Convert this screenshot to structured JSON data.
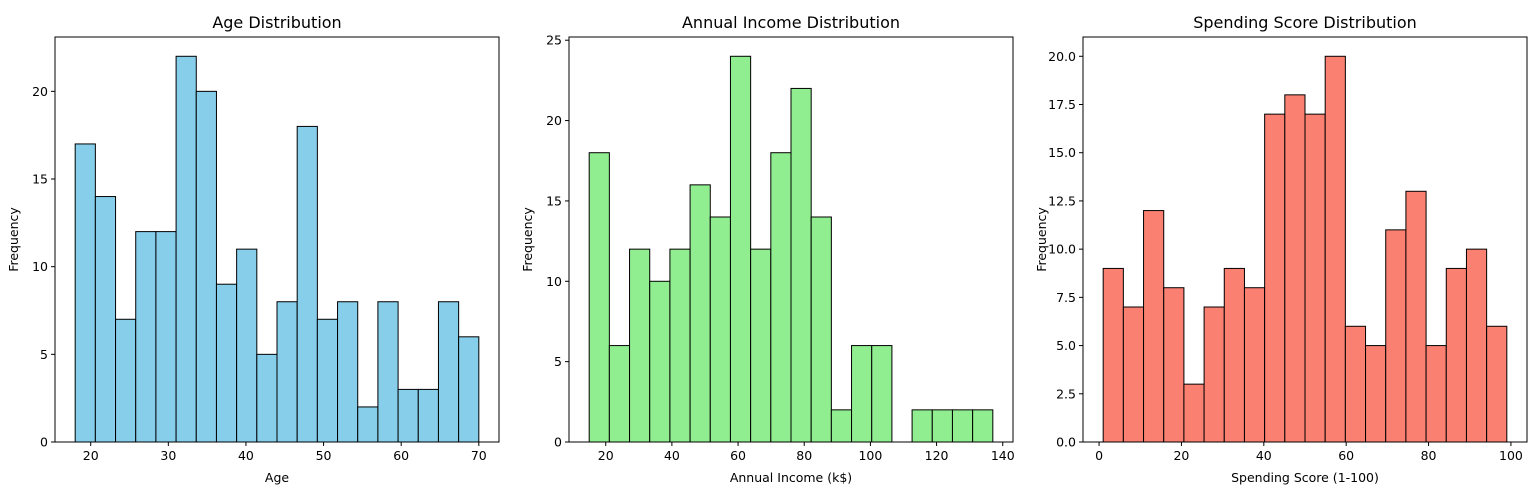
{
  "chart_data": [
    {
      "type": "bar",
      "title": "Age Distribution",
      "xlabel": "Age",
      "ylabel": "Frequency",
      "color": "#87ceeb",
      "edge_color": "#000000",
      "bin_start": 18,
      "bin_width": 2.6,
      "values": [
        17,
        14,
        7,
        12,
        12,
        22,
        20,
        9,
        11,
        5,
        8,
        18,
        7,
        8,
        2,
        8,
        3,
        3,
        8,
        6
      ],
      "xlim": [
        15.4,
        72.6
      ],
      "ylim": [
        0,
        23.1
      ],
      "xticks": [
        20,
        30,
        40,
        50,
        60,
        70
      ],
      "yticks": [
        0,
        5,
        10,
        15,
        20
      ],
      "ytick_labels": [
        "0",
        "5",
        "10",
        "15",
        "20"
      ]
    },
    {
      "type": "bar",
      "title": "Annual Income Distribution",
      "xlabel": "Annual Income (k$)",
      "ylabel": "Frequency",
      "color": "#90ee90",
      "edge_color": "#000000",
      "bin_start": 15,
      "bin_width": 6.1,
      "values": [
        18,
        6,
        12,
        10,
        12,
        16,
        14,
        24,
        12,
        18,
        22,
        14,
        2,
        6,
        6,
        0,
        2,
        2,
        2,
        2
      ],
      "xlim": [
        8.9,
        143.1
      ],
      "ylim": [
        0,
        25.2
      ],
      "xticks": [
        20,
        40,
        60,
        80,
        100,
        120,
        140
      ],
      "yticks": [
        0,
        5,
        10,
        15,
        20,
        25
      ],
      "ytick_labels": [
        "0",
        "5",
        "10",
        "15",
        "20",
        "25"
      ]
    },
    {
      "type": "bar",
      "title": "Spending Score Distribution",
      "xlabel": "Spending Score (1-100)",
      "ylabel": "Frequency",
      "color": "#fa8072",
      "edge_color": "#000000",
      "bin_start": 1,
      "bin_width": 4.9,
      "values": [
        9,
        7,
        12,
        8,
        3,
        7,
        9,
        8,
        17,
        18,
        17,
        20,
        6,
        5,
        11,
        13,
        5,
        9,
        10,
        6
      ],
      "xlim": [
        -3.9,
        103.9
      ],
      "ylim": [
        0,
        21
      ],
      "xticks": [
        0,
        20,
        40,
        60,
        80,
        100
      ],
      "yticks": [
        0,
        2.5,
        5,
        7.5,
        10,
        12.5,
        15,
        17.5,
        20
      ],
      "ytick_labels": [
        "0.0",
        "2.5",
        "5.0",
        "7.5",
        "10.0",
        "12.5",
        "15.0",
        "17.5",
        "20.0"
      ]
    }
  ]
}
